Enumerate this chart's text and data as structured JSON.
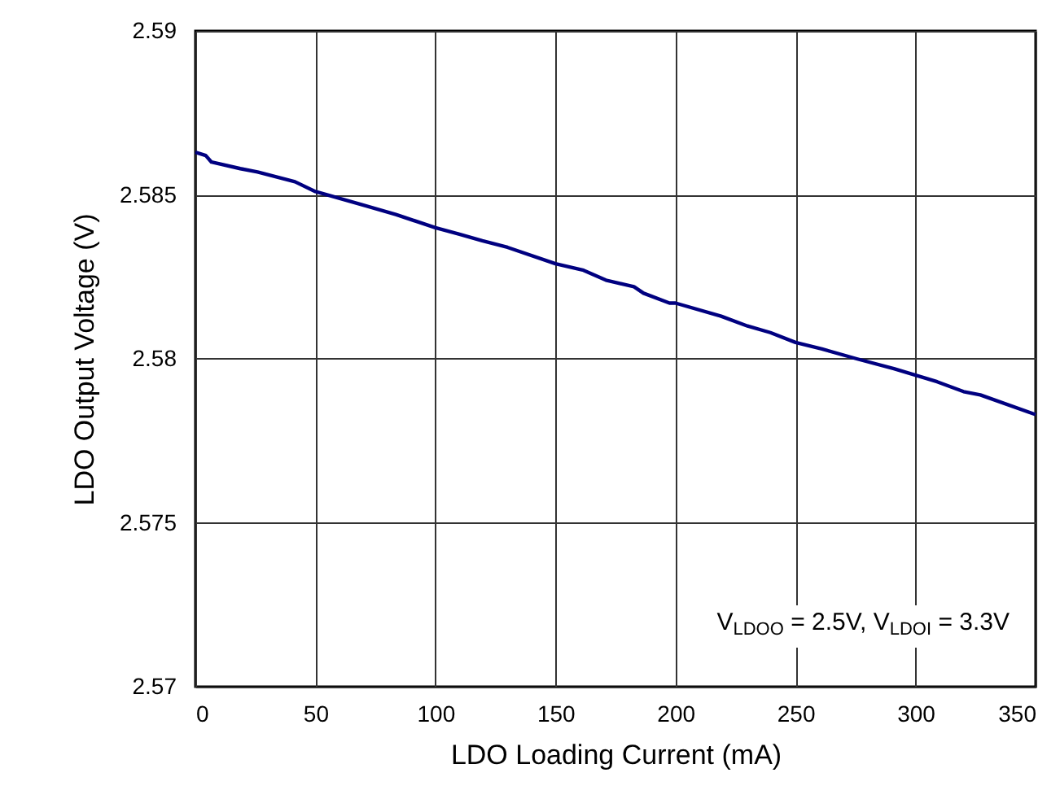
{
  "chart_data": {
    "type": "line",
    "xlabel": "LDO Loading Current (mA)",
    "ylabel": "LDO Output Voltage (V)",
    "x": [
      0,
      4.3,
      6.7,
      18.7,
      25.9,
      41.5,
      50,
      69.4,
      83.5,
      100,
      110,
      119.5,
      130,
      150,
      161.7,
      171,
      182.7,
      186.7,
      197.5,
      200,
      219,
      230,
      239.5,
      250,
      261,
      275.5,
      291,
      300,
      309,
      320,
      327,
      350
    ],
    "series": [
      {
        "color": "#000080",
        "values": [
          2.5863,
          2.5862,
          2.586,
          2.5858,
          2.5857,
          2.5854,
          2.5851,
          2.5847,
          2.5844,
          2.584,
          2.5838,
          2.5836,
          2.5834,
          2.5829,
          2.5827,
          2.5824,
          2.5822,
          2.582,
          2.5817,
          2.5817,
          2.5813,
          2.581,
          2.5808,
          2.5805,
          2.5803,
          2.58,
          2.5797,
          2.5795,
          2.5793,
          2.579,
          2.5789,
          2.5783
        ]
      }
    ],
    "xlim": [
      0,
      350
    ],
    "xticks": [
      0,
      50,
      100,
      150,
      200,
      250,
      300,
      350
    ],
    "ylim": [
      2.57,
      2.59
    ],
    "yticks": [
      2.57,
      2.575,
      2.58,
      2.585,
      2.59
    ],
    "grid": true,
    "line_style": "solid",
    "marker": "none",
    "annotations": [
      "V$_{LDOO}$ = 2.5V, V$_{LDOI}$ = 3.3V"
    ]
  }
}
